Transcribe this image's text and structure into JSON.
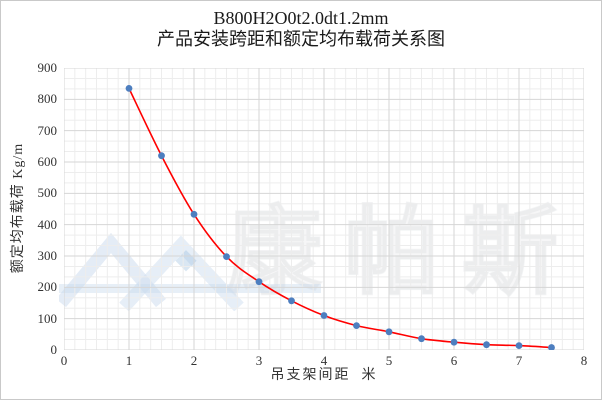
{
  "title": {
    "line1": "B800H2O0t2.0dt1.2mm",
    "line2": "产品安装跨距和额定均布载荷关系图"
  },
  "axes": {
    "x_title": "吊支架间距  米",
    "y_title": "额定均布载荷 Kg/m",
    "x_ticks": [
      "0",
      "1",
      "2",
      "3",
      "4",
      "5",
      "6",
      "7",
      "8"
    ],
    "y_ticks": [
      "0",
      "100",
      "200",
      "300",
      "400",
      "500",
      "600",
      "700",
      "800",
      "900"
    ]
  },
  "watermark": {
    "text": "康帕斯"
  },
  "colors": {
    "line": "#FF0000",
    "marker": "#4D7EBF",
    "grid_minor": "#EDEDED",
    "grid_major": "#D6D6D6",
    "title_text": "#1A1A1A"
  },
  "chart_data": {
    "type": "line",
    "title": "B800H2O0t2.0dt1.2mm 产品安装跨距和额定均布载荷关系图",
    "xlabel": "吊支架间距 米",
    "ylabel": "额定均布载荷 Kg/m",
    "x": [
      1,
      1.5,
      2,
      2.5,
      3,
      3.5,
      4,
      4.5,
      5,
      5.5,
      6,
      6.5,
      7,
      7.5
    ],
    "y": [
      835,
      620,
      433,
      298,
      218,
      157,
      110,
      78,
      58,
      36,
      25,
      17,
      14,
      8
    ],
    "xlim": [
      0,
      8
    ],
    "ylim": [
      0,
      900
    ],
    "x_major_step": 1,
    "y_major_step": 100,
    "x_minor_per_major": 6,
    "y_minor_per_major": 3,
    "grid": true,
    "legend": false,
    "marker": "circle",
    "line_style": "smooth"
  }
}
